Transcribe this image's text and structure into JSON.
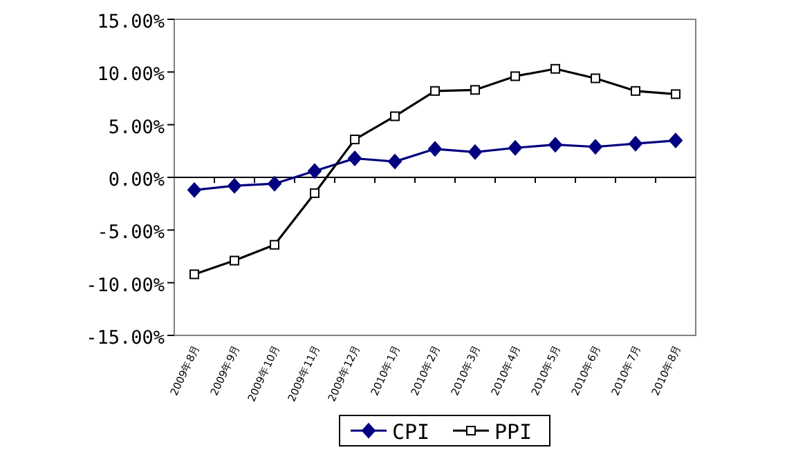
{
  "chart_data": {
    "type": "line",
    "categories": [
      "2009年8月",
      "2009年9月",
      "2009年10月",
      "2009年11月",
      "2009年12月",
      "2010年1月",
      "2010年2月",
      "2010年3月",
      "2010年4月",
      "2010年5月",
      "2010年6月",
      "2010年7月",
      "2010年8月"
    ],
    "series": [
      {
        "name": "CPI",
        "color": "#000080",
        "marker": "diamond",
        "values": [
          -1.2,
          -0.8,
          -0.6,
          0.6,
          1.8,
          1.5,
          2.7,
          2.4,
          2.8,
          3.1,
          2.9,
          3.2,
          3.5
        ]
      },
      {
        "name": "PPI",
        "color": "#000000",
        "marker": "square",
        "values": [
          -9.2,
          -7.9,
          -6.4,
          -1.5,
          3.6,
          5.8,
          8.2,
          8.3,
          9.6,
          10.3,
          9.4,
          8.2,
          7.9
        ]
      }
    ],
    "ylim": [
      -15,
      15
    ],
    "yticks": [
      {
        "value": -15,
        "label": "-15.00%"
      },
      {
        "value": -10,
        "label": "-10.00%"
      },
      {
        "value": -5,
        "label": "-5.00%"
      },
      {
        "value": 0,
        "label": "0.00%"
      },
      {
        "value": 5,
        "label": "5.00%"
      },
      {
        "value": 10,
        "label": "10.00%"
      },
      {
        "value": 15,
        "label": "15.00%"
      }
    ],
    "legend": "bottom"
  }
}
